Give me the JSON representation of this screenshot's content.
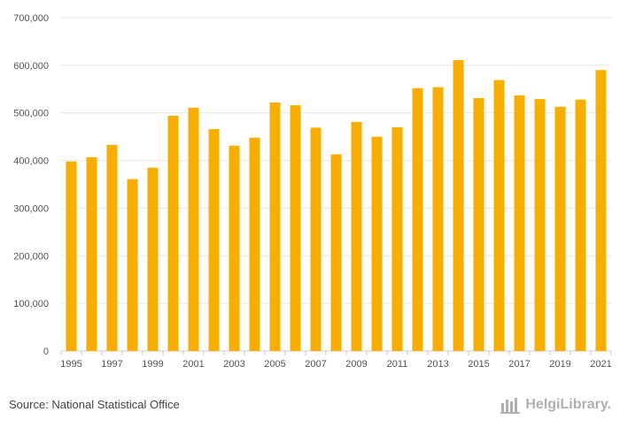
{
  "chart_data": {
    "type": "bar",
    "title": "",
    "xlabel": "",
    "ylabel": "",
    "ylim": [
      0,
      700000
    ],
    "y_ticks": [
      0,
      100000,
      200000,
      300000,
      400000,
      500000,
      600000,
      700000
    ],
    "y_tick_labels": [
      "0",
      "100,000",
      "200,000",
      "300,000",
      "400,000",
      "500,000",
      "600,000",
      "700,000"
    ],
    "categories": [
      "1995",
      "1996",
      "1997",
      "1998",
      "1999",
      "2000",
      "2001",
      "2002",
      "2003",
      "2004",
      "2005",
      "2006",
      "2007",
      "2008",
      "2009",
      "2010",
      "2011",
      "2012",
      "2013",
      "2014",
      "2015",
      "2016",
      "2017",
      "2018",
      "2019",
      "2020",
      "2021"
    ],
    "x_tick_labels": [
      "1995",
      "1997",
      "1999",
      "2001",
      "2003",
      "2005",
      "2007",
      "2009",
      "2011",
      "2013",
      "2015",
      "2017",
      "2019",
      "2021"
    ],
    "values": [
      398000,
      407000,
      433000,
      361000,
      385000,
      494000,
      511000,
      466000,
      431000,
      448000,
      522000,
      516000,
      469000,
      413000,
      481000,
      450000,
      470000,
      552000,
      554000,
      611000,
      531000,
      569000,
      537000,
      529000,
      513000,
      528000,
      590000
    ],
    "bar_color": "#F7AE00",
    "grid": true
  },
  "footer": {
    "source": "Source: National Statistical Office",
    "logo_text": "HelgiLibrary."
  },
  "colors": {
    "grid": "#e6e6e6",
    "axis": "#cccccc",
    "logo": "#b0b0b0"
  }
}
